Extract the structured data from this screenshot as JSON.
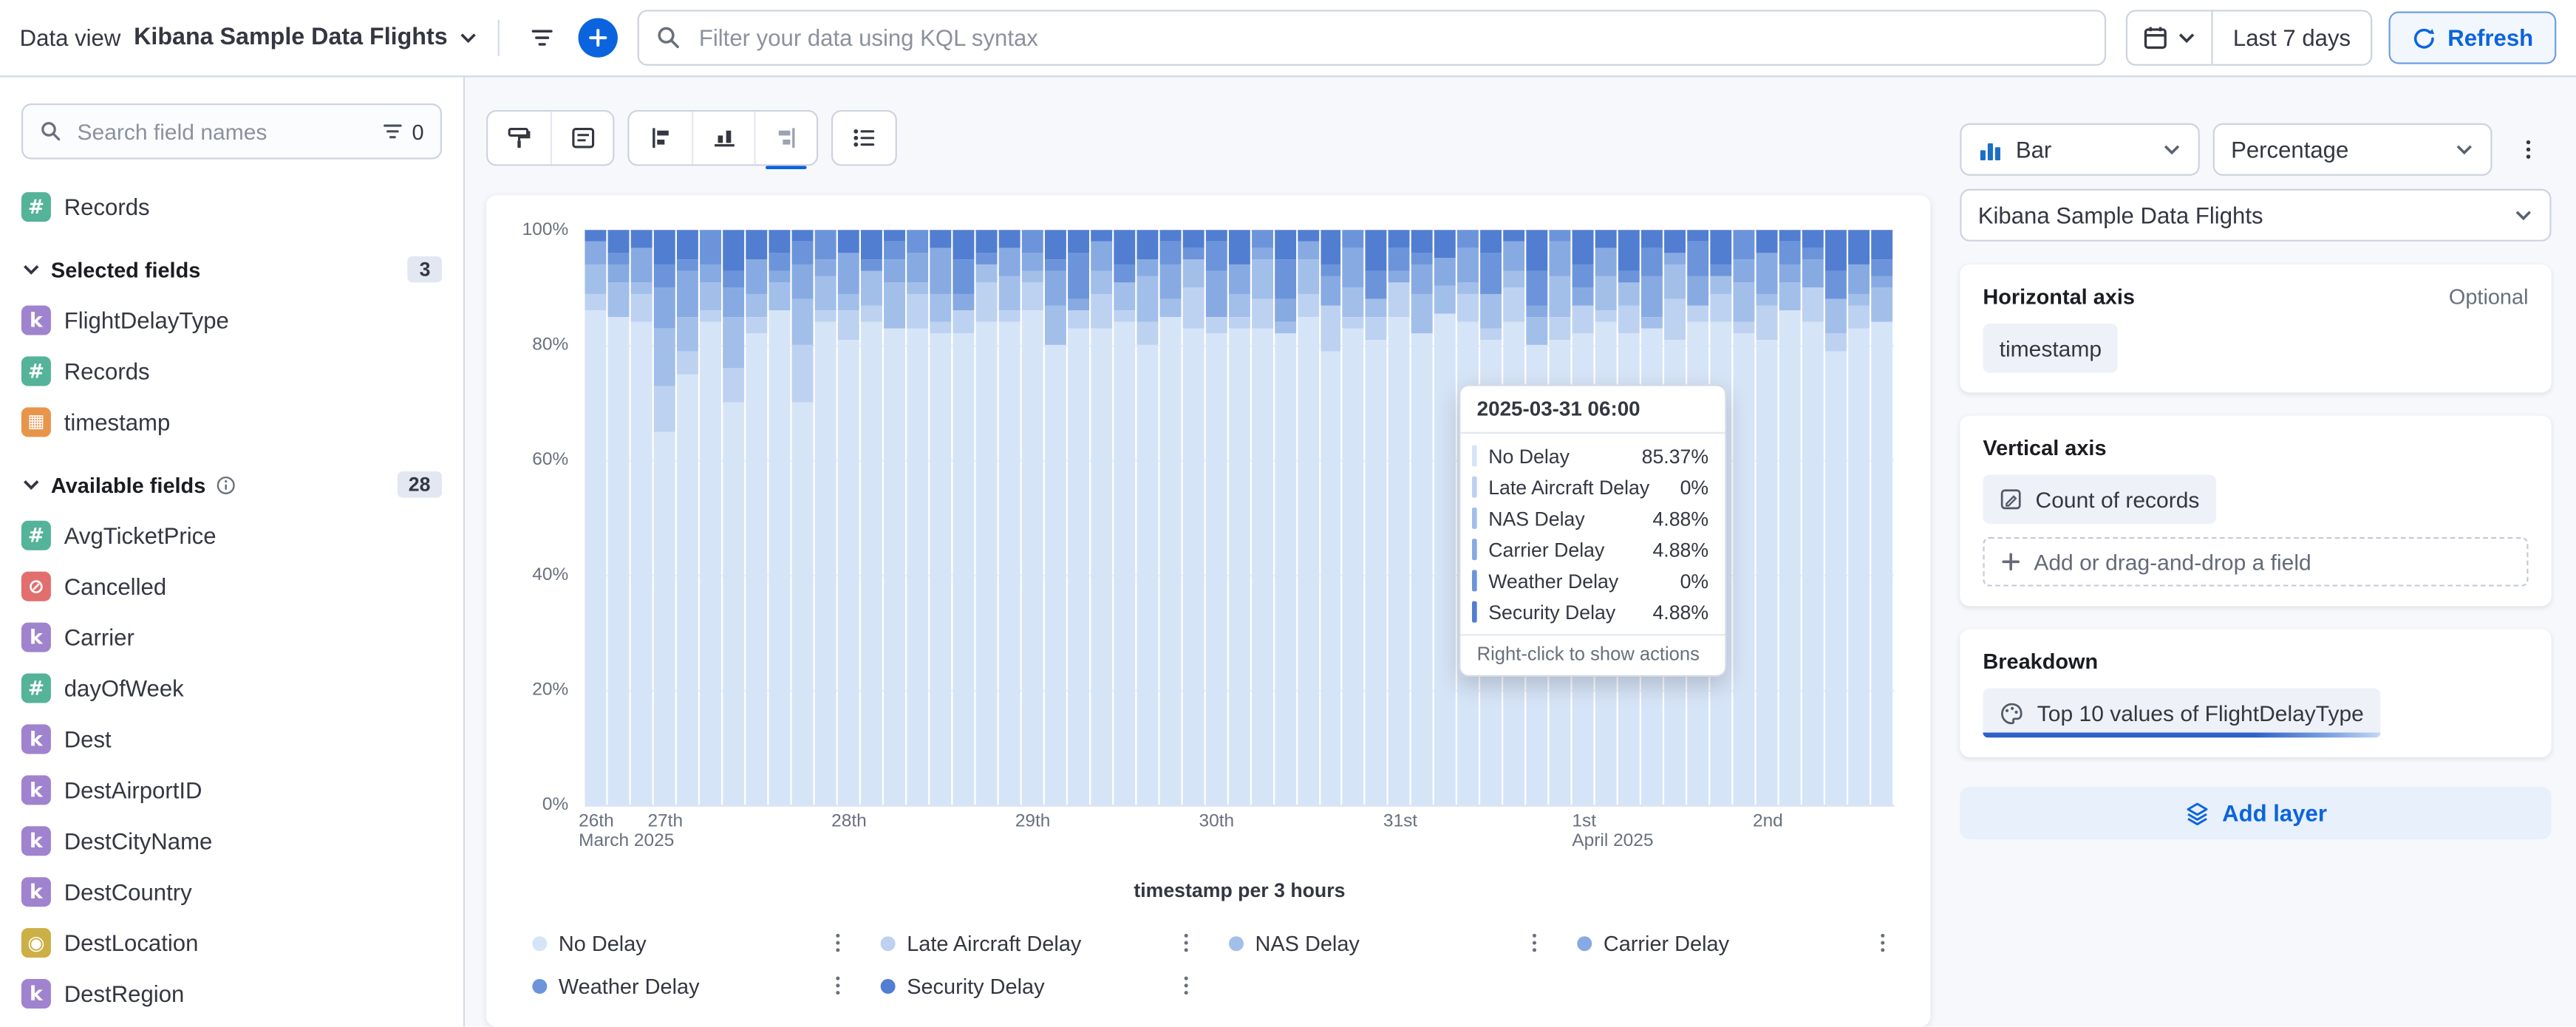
{
  "top_bar": {
    "data_view_label": "Data view",
    "data_view_value": "Kibana Sample Data Flights",
    "kql_placeholder": "Filter your data using KQL syntax",
    "time_range_label": "Last 7 days",
    "refresh_label": "Refresh"
  },
  "sidebar": {
    "search_placeholder": "Search field names",
    "field_filter_count": "0",
    "top_fields": [
      {
        "label": "Records",
        "type": "number"
      }
    ],
    "sections": [
      {
        "id": "selected",
        "title": "Selected fields",
        "count": "3",
        "has_info_icon": false,
        "fields": [
          {
            "label": "FlightDelayType",
            "type": "keyword"
          },
          {
            "label": "Records",
            "type": "number"
          },
          {
            "label": "timestamp",
            "type": "date"
          }
        ]
      },
      {
        "id": "available",
        "title": "Available fields",
        "count": "28",
        "has_info_icon": true,
        "fields": [
          {
            "label": "AvgTicketPrice",
            "type": "number"
          },
          {
            "label": "Cancelled",
            "type": "boolean"
          },
          {
            "label": "Carrier",
            "type": "keyword"
          },
          {
            "label": "dayOfWeek",
            "type": "number"
          },
          {
            "label": "Dest",
            "type": "keyword"
          },
          {
            "label": "DestAirportID",
            "type": "keyword"
          },
          {
            "label": "DestCityName",
            "type": "keyword"
          },
          {
            "label": "DestCountry",
            "type": "keyword"
          },
          {
            "label": "DestLocation",
            "type": "geo_point"
          },
          {
            "label": "DestRegion",
            "type": "keyword"
          }
        ]
      }
    ],
    "token_styles": {
      "number": {
        "glyph": "#",
        "bg": "#54B399"
      },
      "keyword": {
        "glyph": "k",
        "bg": "#A083CE"
      },
      "date": {
        "glyph": "▦",
        "bg": "#E8954B"
      },
      "boolean": {
        "glyph": "⊘",
        "bg": "#E26E6E"
      },
      "geo_point": {
        "glyph": "◉",
        "bg": "#CCAF45"
      }
    }
  },
  "chart_data": {
    "type": "bar",
    "stacked": true,
    "value_format": "percentage",
    "title": "",
    "xlabel": "timestamp per 3 hours",
    "interval": "3h",
    "ylim": [
      0,
      100
    ],
    "y_ticks": [
      "100%",
      "80%",
      "60%",
      "40%",
      "20%",
      "0%"
    ],
    "x_ticks": [
      {
        "bar": 0,
        "label": "26th",
        "sublabel": "March 2025"
      },
      {
        "bar": 3,
        "label": "27th",
        "sublabel": ""
      },
      {
        "bar": 11,
        "label": "28th",
        "sublabel": ""
      },
      {
        "bar": 19,
        "label": "29th",
        "sublabel": ""
      },
      {
        "bar": 27,
        "label": "30th",
        "sublabel": ""
      },
      {
        "bar": 35,
        "label": "31st",
        "sublabel": ""
      },
      {
        "bar": 43,
        "label": "1st",
        "sublabel": "April 2025"
      },
      {
        "bar": 51,
        "label": "2nd",
        "sublabel": ""
      }
    ],
    "series": [
      {
        "name": "No Delay",
        "color": "#d6e4f7",
        "values": [
          86,
          85,
          84,
          65,
          75,
          84,
          70,
          82,
          86,
          70,
          84,
          81,
          84,
          83,
          83,
          82,
          82,
          84,
          84,
          86,
          80,
          83,
          83,
          84,
          80,
          85,
          83,
          82,
          83,
          83,
          82,
          85,
          79,
          83,
          81,
          85,
          82,
          85.37,
          84,
          81,
          84,
          80,
          81,
          82,
          84,
          82,
          83,
          81,
          84,
          84,
          82,
          81,
          86,
          84,
          79,
          83,
          84
        ]
      },
      {
        "name": "Late Aircraft Delay",
        "color": "#bdd2f1",
        "values": [
          3,
          0,
          5,
          8,
          4,
          2,
          6,
          3,
          0,
          10,
          2,
          5,
          3,
          0,
          6,
          2,
          4,
          7,
          2,
          5,
          0,
          3,
          6,
          2,
          4,
          0,
          7,
          3,
          2,
          5,
          0,
          4,
          8,
          2,
          4,
          6,
          0,
          0,
          5,
          2,
          6,
          0,
          4,
          5,
          2,
          5,
          0,
          7,
          3,
          5,
          2,
          6,
          0,
          6,
          3,
          4,
          0
        ]
      },
      {
        "name": "NAS Delay",
        "color": "#a2bfea",
        "values": [
          5,
          6,
          2,
          10,
          6,
          5,
          9,
          4,
          5,
          8,
          6,
          3,
          6,
          8,
          2,
          5,
          0,
          3,
          6,
          2,
          7,
          0,
          4,
          5,
          8,
          3,
          5,
          0,
          4,
          7,
          2,
          6,
          0,
          5,
          3,
          0,
          7,
          4.88,
          2,
          6,
          3,
          5,
          7,
          0,
          6,
          4,
          2,
          6,
          0,
          3,
          7,
          2,
          5,
          0,
          6,
          2,
          6
        ]
      },
      {
        "name": "Carrier Delay",
        "color": "#87aae2",
        "values": [
          4,
          3,
          6,
          7,
          8,
          3,
          5,
          6,
          2,
          6,
          3,
          7,
          0,
          4,
          5,
          8,
          3,
          0,
          5,
          3,
          6,
          2,
          5,
          0,
          3,
          6,
          0,
          8,
          5,
          2,
          4,
          3,
          5,
          7,
          0,
          2,
          5,
          4.88,
          6,
          0,
          5,
          2,
          6,
          3,
          5,
          0,
          7,
          2,
          5,
          0,
          4,
          7,
          3,
          5,
          0,
          5,
          2
        ]
      },
      {
        "name": "Weather Delay",
        "color": "#6c94da",
        "values": [
          0,
          2,
          0,
          4,
          2,
          6,
          3,
          0,
          3,
          4,
          5,
          0,
          2,
          3,
          4,
          0,
          6,
          2,
          0,
          4,
          2,
          8,
          0,
          3,
          0,
          4,
          2,
          5,
          0,
          3,
          7,
          0,
          2,
          3,
          5,
          4,
          2,
          0,
          3,
          7,
          0,
          6,
          2,
          4,
          0,
          2,
          5,
          0,
          6,
          2,
          5,
          0,
          4,
          2,
          5,
          0,
          3
        ]
      },
      {
        "name": "Security Delay",
        "color": "#517ed1",
        "values": [
          2,
          4,
          3,
          6,
          5,
          0,
          7,
          5,
          4,
          2,
          0,
          4,
          5,
          2,
          0,
          3,
          5,
          4,
          3,
          0,
          5,
          4,
          2,
          6,
          5,
          2,
          3,
          2,
          6,
          0,
          5,
          2,
          6,
          0,
          7,
          3,
          4,
          4.88,
          0,
          4,
          2,
          7,
          0,
          6,
          3,
          7,
          3,
          4,
          2,
          6,
          0,
          4,
          2,
          3,
          7,
          6,
          5
        ]
      }
    ]
  },
  "tooltip": {
    "title": "2025-03-31 06:00",
    "rows": [
      {
        "series": "No Delay",
        "value": "85.37%"
      },
      {
        "series": "Late Aircraft Delay",
        "value": "0%"
      },
      {
        "series": "NAS Delay",
        "value": "4.88%"
      },
      {
        "series": "Carrier Delay",
        "value": "4.88%"
      },
      {
        "series": "Weather Delay",
        "value": "0%"
      },
      {
        "series": "Security Delay",
        "value": "4.88%"
      }
    ],
    "footer": "Right-click to show actions"
  },
  "config": {
    "chart_type": "Bar",
    "mode": "Percentage",
    "data_view": "Kibana Sample Data Flights",
    "horizontal_axis_title": "Horizontal axis",
    "optional_label": "Optional",
    "horizontal_field": "timestamp",
    "vertical_axis_title": "Vertical axis",
    "vertical_field": "Count of records",
    "add_field_label": "Add or drag-and-drop a field",
    "breakdown_title": "Breakdown",
    "breakdown_field": "Top 10 values of FlightDelayType",
    "add_layer_label": "Add layer"
  }
}
